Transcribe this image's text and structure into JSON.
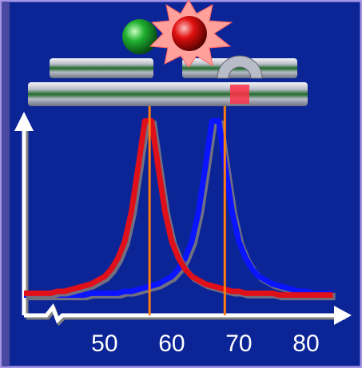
{
  "chart_data": {
    "type": "line",
    "x": [
      38,
      39,
      40,
      41,
      42,
      43,
      44,
      45,
      46,
      47,
      48,
      49,
      50,
      51,
      52,
      53,
      54,
      55,
      56,
      57,
      58,
      59,
      60,
      61,
      62,
      63,
      64,
      65,
      66,
      67,
      68,
      69,
      70,
      71,
      72,
      73,
      74,
      75,
      76,
      77,
      78,
      79,
      80,
      81,
      82,
      83,
      84
    ],
    "series": [
      {
        "color": "#0a14ff",
        "values": [
          0.01,
          0.01,
          0.01,
          0.01,
          0.01,
          0.01,
          0.01,
          0.01,
          0.01,
          0.01,
          0.02,
          0.02,
          0.02,
          0.02,
          0.02,
          0.03,
          0.03,
          0.04,
          0.05,
          0.06,
          0.07,
          0.09,
          0.11,
          0.15,
          0.21,
          0.3,
          0.46,
          0.7,
          0.95,
          0.95,
          0.7,
          0.46,
          0.3,
          0.21,
          0.15,
          0.11,
          0.09,
          0.07,
          0.06,
          0.05,
          0.04,
          0.03,
          0.03,
          0.02,
          0.02,
          0.02,
          0.02
        ]
      },
      {
        "color": "#e0101a",
        "values": [
          0.02,
          0.02,
          0.02,
          0.02,
          0.02,
          0.03,
          0.03,
          0.04,
          0.05,
          0.06,
          0.07,
          0.09,
          0.11,
          0.15,
          0.21,
          0.3,
          0.46,
          0.7,
          0.95,
          0.95,
          0.7,
          0.46,
          0.3,
          0.21,
          0.15,
          0.11,
          0.09,
          0.07,
          0.06,
          0.05,
          0.04,
          0.03,
          0.03,
          0.02,
          0.02,
          0.02,
          0.02,
          0.02,
          0.01,
          0.01,
          0.01,
          0.01,
          0.01,
          0.01,
          0.01,
          0.01,
          0.01
        ]
      }
    ],
    "markers": [
      56.7,
      67.9
    ],
    "marker_color": "#ff7a10",
    "xlim": [
      38,
      85
    ],
    "xticks": [
      50,
      60,
      70,
      80
    ],
    "ylim": [
      0,
      1
    ]
  }
}
